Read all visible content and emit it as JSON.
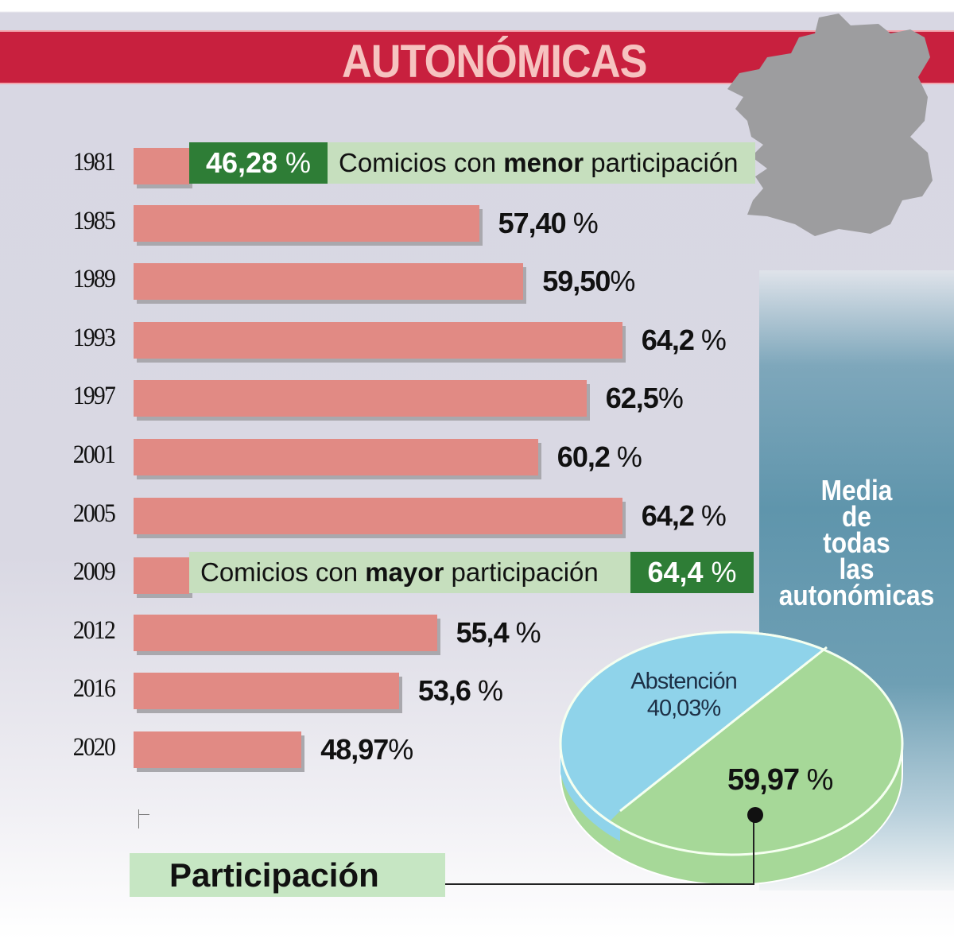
{
  "title": "AUTONÓMICAS",
  "colors": {
    "band": "#c8203e",
    "title": "#f6c3c0",
    "bar": "#e18a84",
    "highlight_dark": "#2e7d36",
    "highlight_light": "#c6dfbe",
    "pie_abstention": "#8fd3ea",
    "pie_participation": "#a6d898",
    "panel": "#5f95ac",
    "map": "#9d9d9f"
  },
  "chart_data": [
    {
      "type": "bar",
      "orientation": "horizontal",
      "categories": [
        "1981",
        "1985",
        "1989",
        "1993",
        "1997",
        "2001",
        "2005",
        "2009",
        "2012",
        "2016",
        "2020"
      ],
      "values": [
        46.28,
        57.4,
        59.5,
        64.2,
        62.5,
        60.2,
        64.2,
        64.4,
        55.4,
        53.6,
        48.97
      ],
      "labels": [
        {
          "num": "46,28",
          "pct": " %"
        },
        {
          "num": "57,40",
          "pct": " %"
        },
        {
          "num": "59,50",
          "pct": "%"
        },
        {
          "num": "64,2",
          "pct": " %"
        },
        {
          "num": "62,5",
          "pct": "%"
        },
        {
          "num": "60,2",
          "pct": " %"
        },
        {
          "num": "64,2",
          "pct": " %"
        },
        {
          "num": "64,4",
          "pct": " %"
        },
        {
          "num": "55,4",
          "pct": " %"
        },
        {
          "num": "53,6",
          "pct": " %"
        },
        {
          "num": "48,97",
          "pct": "%"
        }
      ],
      "annotations": {
        "min": {
          "pre": "Comicios con ",
          "bold": "menor",
          "post": " participación"
        },
        "max": {
          "pre": "Comicios con ",
          "bold": "mayor",
          "post": " participación"
        }
      },
      "xlabel": "Participación"
    },
    {
      "type": "pie",
      "title": "Media de todas las autonómicas",
      "title_lines": [
        "Media",
        "de",
        "todas",
        "las",
        "autonómicas"
      ],
      "slices": [
        {
          "name": "Abstención",
          "value": 40.03,
          "label": "40,03%"
        },
        {
          "name": "Participación",
          "value": 59.97,
          "label_num": "59,97",
          "label_pct": " %"
        }
      ]
    }
  ]
}
